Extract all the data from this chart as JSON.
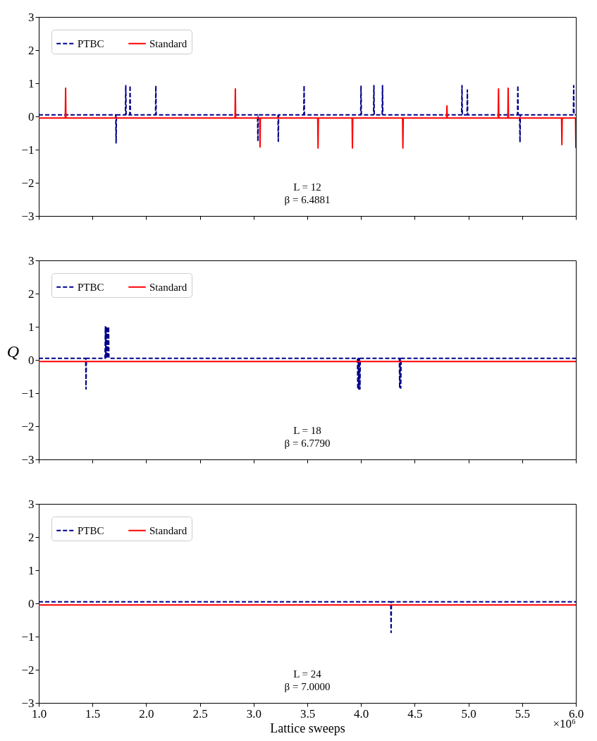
{
  "chart_data": [
    {
      "type": "line",
      "ylim": [
        -3,
        3
      ],
      "yticks": [
        -3,
        -2,
        -1,
        0,
        1,
        2,
        3
      ],
      "xlim": [
        1,
        6
      ],
      "xticks": [
        1,
        1.5,
        2,
        2.5,
        3,
        3.5,
        4,
        4.5,
        5,
        5.5,
        6
      ],
      "tick_labels": "y",
      "legend": "top left",
      "annotations": [
        "L = 12",
        "β = 6.4881"
      ],
      "series": [
        {
          "name": "PTBC",
          "color": "#00008b",
          "line_style": "dashed",
          "x": [
            1.0,
            1.717,
            1.72,
            1.723,
            1.807,
            1.81,
            1.813,
            1.847,
            1.85,
            1.853,
            2.087,
            2.09,
            2.093,
            3.037,
            3.04,
            3.043,
            3.227,
            3.23,
            3.233,
            3.467,
            3.47,
            3.473,
            3.997,
            4.0,
            4.003,
            4.117,
            4.12,
            4.123,
            4.197,
            4.2,
            4.203,
            4.937,
            4.94,
            4.943,
            4.987,
            4.99,
            4.993,
            5.457,
            5.46,
            5.463,
            5.477,
            5.48,
            5.483,
            5.977,
            5.98,
            5.983,
            6.0
          ],
          "values": [
            0.05,
            0.05,
            -0.8,
            0.05,
            0.05,
            0.93,
            0.05,
            0.05,
            0.93,
            0.05,
            0.05,
            0.93,
            0.05,
            0.05,
            -0.75,
            0.05,
            0.05,
            -0.75,
            0.05,
            0.05,
            0.93,
            0.05,
            0.05,
            0.93,
            0.05,
            0.05,
            0.93,
            0.05,
            0.05,
            0.93,
            0.05,
            0.05,
            0.93,
            0.05,
            0.05,
            0.8,
            0.05,
            0.05,
            0.93,
            0.05,
            0.05,
            -0.78,
            0.05,
            0.05,
            0.93,
            0.05,
            0.05
          ]
        },
        {
          "name": "Standard",
          "color": "#ff0000",
          "line_style": "solid",
          "x": [
            1.0,
            1.247,
            1.25,
            1.253,
            2.827,
            2.83,
            2.833,
            3.057,
            3.06,
            3.063,
            3.597,
            3.6,
            3.603,
            3.917,
            3.92,
            3.923,
            4.387,
            4.39,
            4.393,
            4.797,
            4.8,
            4.803,
            5.277,
            5.28,
            5.283,
            5.367,
            5.37,
            5.373,
            5.867,
            5.87,
            5.873,
            5.997,
            6.0
          ],
          "values": [
            -0.05,
            -0.05,
            0.85,
            -0.05,
            -0.05,
            0.83,
            -0.05,
            -0.05,
            -0.92,
            -0.05,
            -0.05,
            -0.95,
            -0.05,
            -0.05,
            -0.95,
            -0.05,
            -0.05,
            -0.95,
            -0.05,
            -0.05,
            0.32,
            -0.05,
            -0.05,
            0.83,
            -0.05,
            -0.05,
            0.85,
            -0.05,
            -0.05,
            -0.85,
            -0.05,
            -0.05,
            -0.95
          ]
        }
      ]
    },
    {
      "type": "line",
      "ylabel": "Q",
      "ylim": [
        -3,
        3
      ],
      "yticks": [
        -3,
        -2,
        -1,
        0,
        1,
        2,
        3
      ],
      "xlim": [
        1,
        6
      ],
      "xticks": [
        1,
        1.5,
        2,
        2.5,
        3,
        3.5,
        4,
        4.5,
        5,
        5.5,
        6
      ],
      "tick_labels": "y",
      "legend": "top left",
      "annotations": [
        "L = 18",
        "β = 6.7790"
      ],
      "series": [
        {
          "name": "PTBC",
          "color": "#00008b",
          "line_style": "dashed",
          "x": [
            1.0,
            1.437,
            1.44,
            1.443,
            1.617,
            1.62,
            1.625,
            1.63,
            1.635,
            1.64,
            1.645,
            1.65,
            1.653,
            3.967,
            3.97,
            3.975,
            3.98,
            3.985,
            3.99,
            3.993,
            4.357,
            4.36,
            4.365,
            4.37,
            4.373,
            6.0
          ],
          "values": [
            0.05,
            0.05,
            -0.88,
            0.05,
            0.05,
            1.0,
            0.05,
            1.0,
            0.05,
            1.0,
            0.05,
            1.0,
            0.05,
            0.05,
            -0.88,
            0.05,
            -0.88,
            0.05,
            -0.88,
            0.05,
            0.05,
            -0.85,
            0.05,
            -0.85,
            0.05,
            0.05
          ]
        },
        {
          "name": "Standard",
          "color": "#ff0000",
          "line_style": "solid",
          "x": [
            1.0,
            6.0
          ],
          "values": [
            -0.05,
            -0.05
          ]
        }
      ]
    },
    {
      "type": "line",
      "xlabel": "Lattice sweeps",
      "ylim": [
        -3,
        3
      ],
      "yticks": [
        -3,
        -2,
        -1,
        0,
        1,
        2,
        3
      ],
      "xlim": [
        1,
        6
      ],
      "xticks": [
        {
          "value": 1,
          "label": "1.0"
        },
        1.5,
        {
          "value": 2,
          "label": "2.0"
        },
        2.5,
        {
          "value": 3,
          "label": "3.0"
        },
        3.5,
        {
          "value": 4,
          "label": "4.0"
        },
        4.5,
        {
          "value": 5,
          "label": "5.0"
        },
        5.5,
        {
          "value": 6,
          "label": "6.0"
        }
      ],
      "legend": "top left",
      "annotations": [
        "L = 24",
        "β = 7.0000",
        "×10⁶"
      ],
      "series": [
        {
          "name": "PTBC",
          "color": "#00008b",
          "line_style": "dashed",
          "x": [
            1.0,
            4.277,
            4.28,
            4.283,
            6.0
          ],
          "values": [
            0.05,
            0.05,
            -0.88,
            0.05,
            0.05
          ]
        },
        {
          "name": "Standard",
          "color": "#ff0000",
          "line_style": "solid",
          "x": [
            1.0,
            6.0
          ],
          "values": [
            -0.05,
            -0.05
          ]
        }
      ]
    }
  ]
}
